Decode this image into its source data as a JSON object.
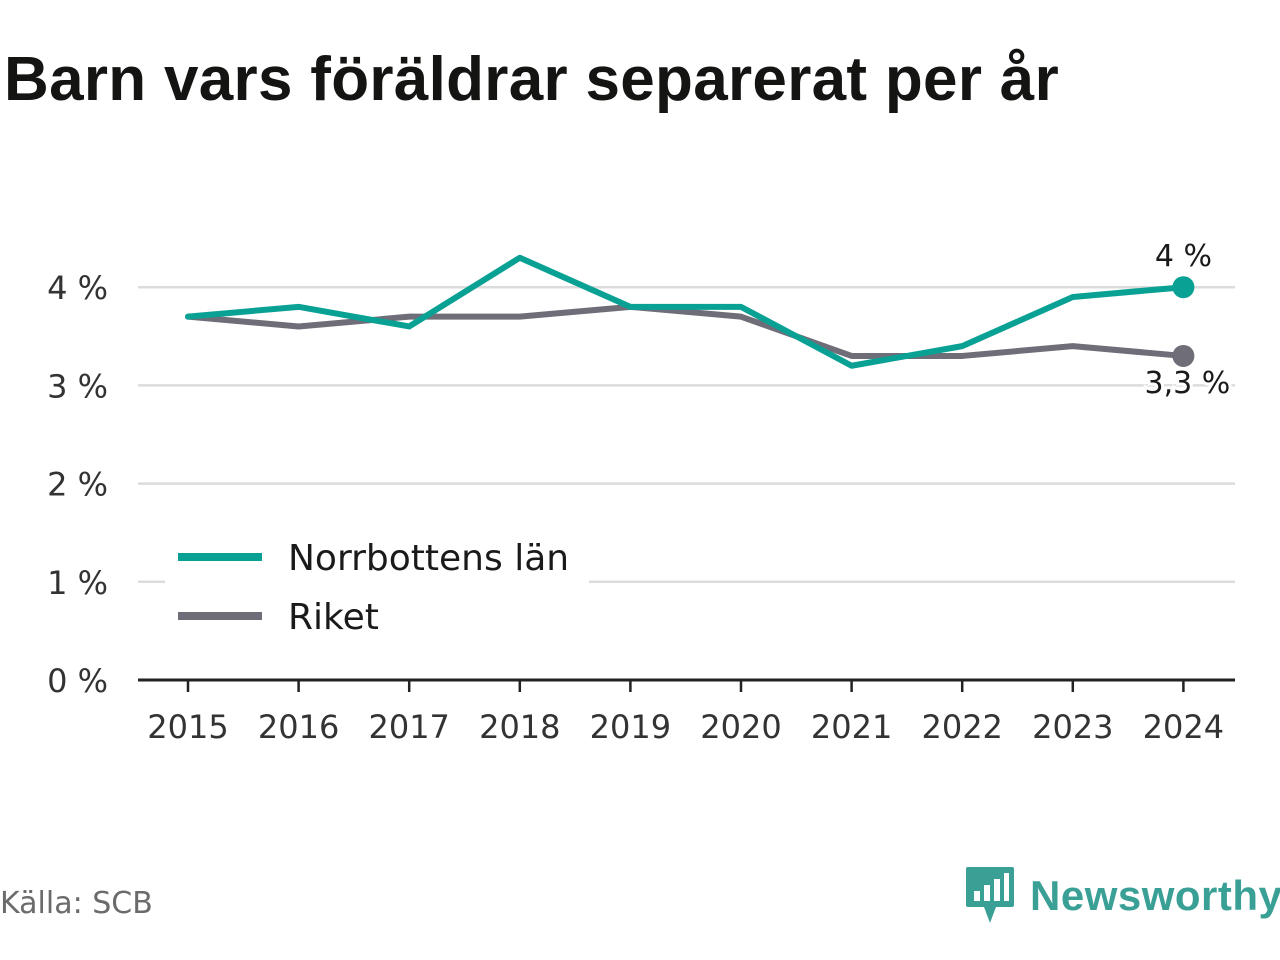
{
  "title": "Barn vars föräldrar separerat per år",
  "source": "Källa: SCB",
  "brand": {
    "name": "Newsworthy",
    "icon": "newsworthy-logo-icon",
    "color": "#3aa096"
  },
  "chart_data": {
    "type": "line",
    "x": [
      "2015",
      "2016",
      "2017",
      "2018",
      "2019",
      "2020",
      "2021",
      "2022",
      "2023",
      "2024"
    ],
    "series": [
      {
        "name": "Norrbottens län",
        "color": "#0aa195",
        "values": [
          3.7,
          3.8,
          3.6,
          4.3,
          3.8,
          3.8,
          3.2,
          3.4,
          3.9,
          4.0
        ],
        "end_label": "4 %"
      },
      {
        "name": "Riket",
        "color": "#6e6d78",
        "values": [
          3.7,
          3.6,
          3.7,
          3.7,
          3.8,
          3.7,
          3.3,
          3.3,
          3.4,
          3.3
        ],
        "end_label": "3,3 %"
      }
    ],
    "ylim": [
      0,
      4.4
    ],
    "y_ticks": [
      0,
      1,
      2,
      3,
      4
    ],
    "y_tick_labels": [
      "0 %",
      "1 %",
      "2 %",
      "3 %",
      "4 %"
    ],
    "grid": true,
    "gridline_color": "#dcdcdc",
    "axis_color": "#222222",
    "legend_position": "bottom-left"
  }
}
